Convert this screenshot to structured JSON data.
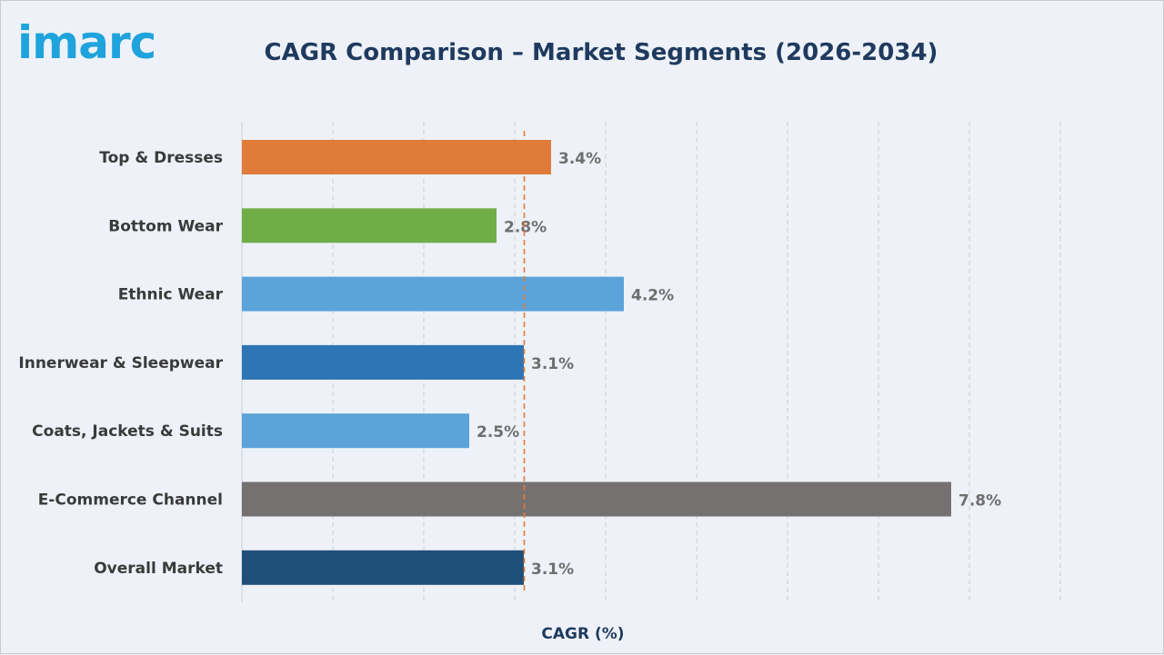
{
  "brand": {
    "logo_text": "imarc",
    "logo_color": "#1fa3dc"
  },
  "chart_data": {
    "type": "bar",
    "orientation": "horizontal",
    "title": "CAGR Comparison – Market Segments (2026-2034)",
    "xlabel": "CAGR (%)",
    "ylabel": "",
    "xlim": [
      0,
      9
    ],
    "grid": "vertical dashed",
    "reference_line": {
      "value": 3.1,
      "style": "dashed",
      "color": "#e07b39"
    },
    "categories": [
      "Top & Dresses",
      "Bottom Wear",
      "Ethnic Wear",
      "Innerwear & Sleepwear",
      "Coats, Jackets & Suits",
      "E-Commerce Channel",
      "Overall Market"
    ],
    "values": [
      3.4,
      2.8,
      4.2,
      3.1,
      2.5,
      7.8,
      3.1
    ],
    "value_labels": [
      "3.4%",
      "2.8%",
      "4.2%",
      "3.1%",
      "2.5%",
      "7.8%",
      "3.1%"
    ],
    "colors": [
      "#e07b39",
      "#70ad47",
      "#5ba3d9",
      "#2e75b6",
      "#5ba3d9",
      "#767171",
      "#1f4e79"
    ]
  }
}
